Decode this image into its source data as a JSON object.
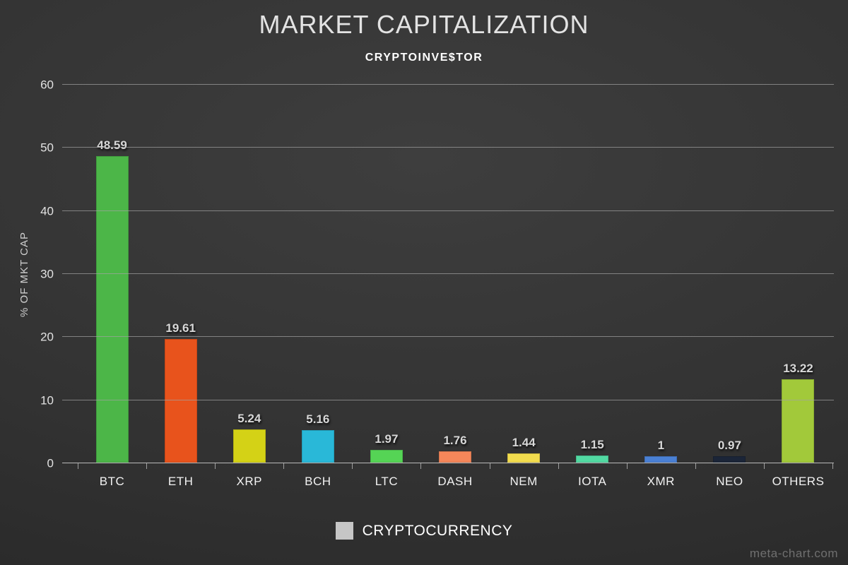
{
  "header": {
    "title": "MARKET CAPITALIZATION",
    "subtitle": "CRYPTOINVE$TOR"
  },
  "legend": {
    "label": "CRYPTOCURRENCY",
    "swatch_color": "#c6c6c6"
  },
  "watermark": "meta-chart.com",
  "chart_data": {
    "type": "bar",
    "title": "MARKET CAPITALIZATION",
    "subtitle": "CRYPTOINVE$TOR",
    "xlabel": "",
    "ylabel": "% OF MKT CAP",
    "ylim": [
      0,
      60
    ],
    "yticks": [
      0,
      10,
      20,
      30,
      40,
      50,
      60
    ],
    "grid": true,
    "legend_position": "bottom",
    "legend_entries": [
      "CRYPTOCURRENCY"
    ],
    "categories": [
      "BTC",
      "ETH",
      "XRP",
      "BCH",
      "LTC",
      "DASH",
      "NEM",
      "IOTA",
      "XMR",
      "NEO",
      "OTHERS"
    ],
    "values": [
      48.59,
      19.61,
      5.24,
      5.16,
      1.97,
      1.76,
      1.44,
      1.15,
      1,
      0.97,
      13.22
    ],
    "value_labels": [
      "48.59",
      "19.61",
      "5.24",
      "5.16",
      "1.97",
      "1.76",
      "1.44",
      "1.15",
      "1",
      "0.97",
      "13.22"
    ],
    "bar_colors": [
      "#4cb648",
      "#e8531c",
      "#d4d216",
      "#29b8d8",
      "#55d455",
      "#f5875a",
      "#f2dc4e",
      "#52d9a2",
      "#4a80d4",
      "#1b2538",
      "#a2c93a"
    ]
  }
}
